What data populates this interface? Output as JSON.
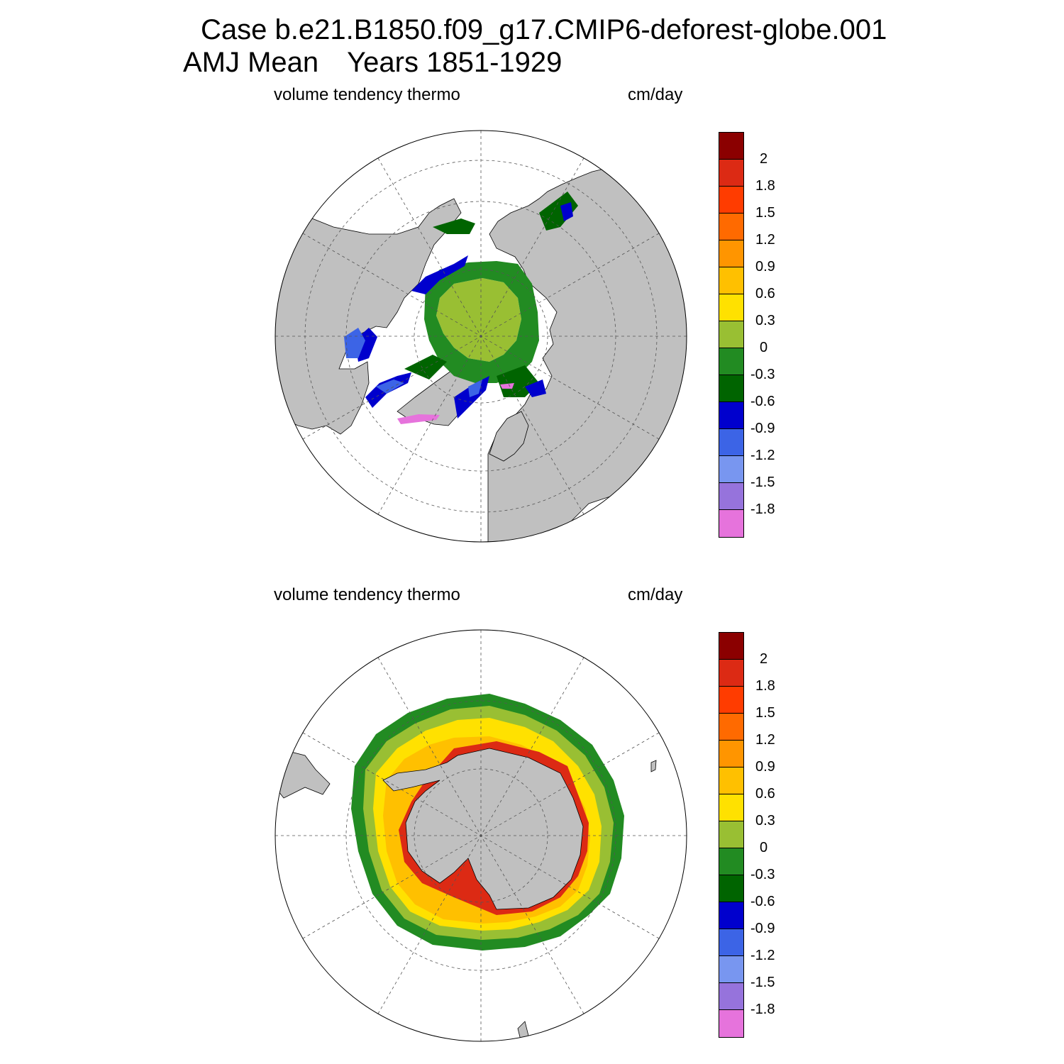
{
  "title": {
    "case": "Case b.e21.B1850.f09_g17.CMIP6-deforest-globe.001",
    "season": "AMJ Mean",
    "years": "Years 1851-1929"
  },
  "panels": [
    {
      "name": "north",
      "variable": "volume tendency thermo",
      "units": "cm/day"
    },
    {
      "name": "south",
      "variable": "volume tendency thermo",
      "units": "cm/day"
    }
  ],
  "colorbar": {
    "labels": [
      "2",
      "1.8",
      "1.5",
      "1.2",
      "0.9",
      "0.6",
      "0.3",
      "0",
      "-0.3",
      "-0.6",
      "-0.9",
      "-1.2",
      "-1.5",
      "-1.8"
    ],
    "colors": [
      "#8b0000",
      "#dc2a14",
      "#ff3c00",
      "#ff6a00",
      "#ff9500",
      "#ffc000",
      "#ffe100",
      "#99bf33",
      "#228b22",
      "#006400",
      "#0000cd",
      "#3c64e6",
      "#7896f0",
      "#9673dc",
      "#e673dc"
    ]
  },
  "colors": {
    "land": "#c0c0c0",
    "ocean": "#ffffff",
    "grid": "#555555"
  }
}
